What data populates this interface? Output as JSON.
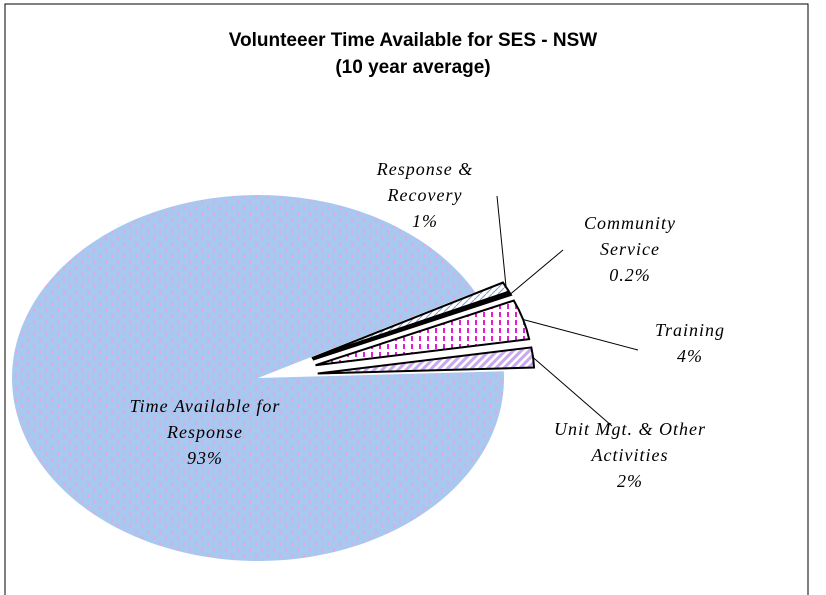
{
  "chart_data": {
    "type": "pie",
    "title": [
      "Volunteeer Time Available for SES - NSW",
      "(10 year average)"
    ],
    "categories": [
      "Response & Recovery",
      "Community Service",
      "Training",
      "Unit Mgt. & Other Activities",
      "Time Available for Response"
    ],
    "values": [
      1,
      0.2,
      4,
      2,
      93
    ],
    "value_labels": [
      "1%",
      "0.2%",
      "4%",
      "2%",
      "93%"
    ],
    "colors": [
      "#ffffff",
      "#222222",
      "#ffffff",
      "#c9a8f0",
      "#a8c8f0"
    ]
  }
}
